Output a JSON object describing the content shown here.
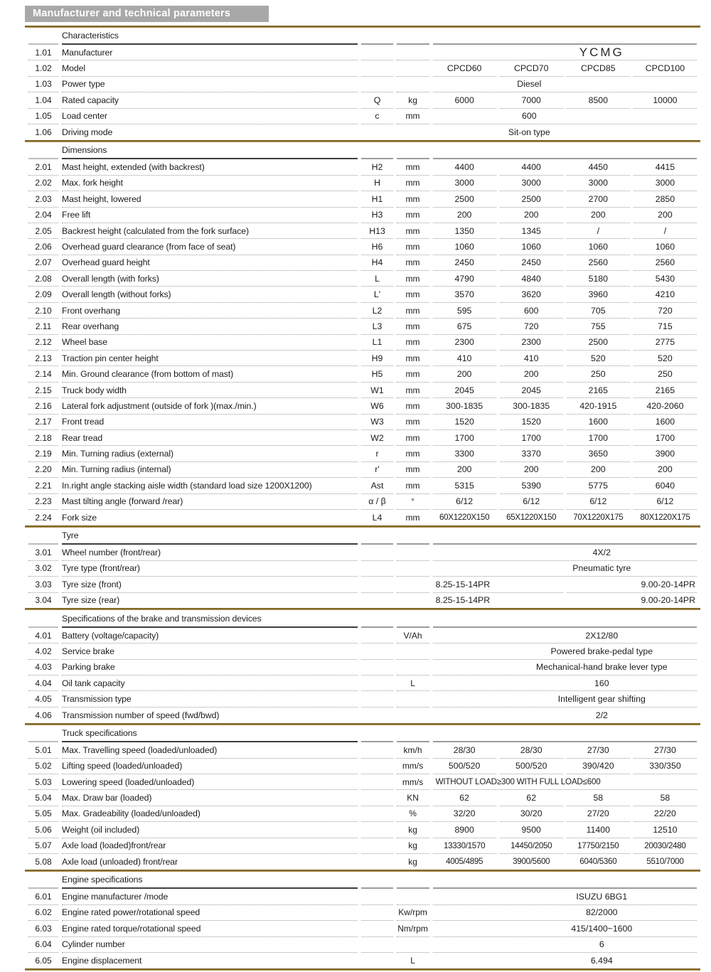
{
  "title": "Manufacturer and technical parameters",
  "colors": {
    "gold_rule": "#8a6f33",
    "title_bg": "#a8a8a8",
    "dotted_line": "#9b9b9b",
    "header_line_dark": "#3e3e3e",
    "header_line_gray": "#9c9c9c"
  },
  "sections": [
    {
      "heading": "Characteristics",
      "rows": [
        {
          "num": "1.01",
          "name": "Manufacturer",
          "symbol": "",
          "unit": "",
          "cells": [
            {
              "t": "YCMG",
              "span": 4,
              "shift": "right",
              "brand": true
            }
          ]
        },
        {
          "num": "1.02",
          "name": "Model",
          "symbol": "",
          "unit": "",
          "cells": [
            {
              "t": "CPCD60"
            },
            {
              "t": "CPCD70"
            },
            {
              "t": "CPCD85"
            },
            {
              "t": "CPCD100"
            }
          ]
        },
        {
          "num": "1.03",
          "name": "Power type",
          "symbol": "",
          "unit": "",
          "cells": [
            {
              "t": "Diesel",
              "span": 4,
              "shift": "left"
            }
          ]
        },
        {
          "num": "1.04",
          "name": "Rated capacity",
          "symbol": "Q",
          "unit": "kg",
          "cells": [
            {
              "t": "6000"
            },
            {
              "t": "7000"
            },
            {
              "t": "8500"
            },
            {
              "t": "10000"
            }
          ]
        },
        {
          "num": "1.05",
          "name": "Load center",
          "symbol": "c",
          "unit": "mm",
          "cells": [
            {
              "t": "600",
              "span": 4,
              "shift": "left"
            }
          ]
        },
        {
          "num": "1.06",
          "name": "Driving mode",
          "symbol": "",
          "unit": "",
          "cells": [
            {
              "t": "Sit-on type",
              "span": 4,
              "shift": "left"
            }
          ]
        }
      ]
    },
    {
      "heading": "Dimensions",
      "rows": [
        {
          "num": "2.01",
          "name": "Mast height, extended (with backrest)",
          "symbol": "H2",
          "unit": "mm",
          "cells": [
            {
              "t": "4400"
            },
            {
              "t": "4400"
            },
            {
              "t": "4450"
            },
            {
              "t": "4415"
            }
          ]
        },
        {
          "num": "2.02",
          "name": "Max. fork height",
          "symbol": "H",
          "unit": "mm",
          "cells": [
            {
              "t": "3000"
            },
            {
              "t": "3000"
            },
            {
              "t": "3000"
            },
            {
              "t": "3000"
            }
          ]
        },
        {
          "num": "2.03",
          "name": "Mast height, lowered",
          "symbol": "H1",
          "unit": "mm",
          "cells": [
            {
              "t": "2500"
            },
            {
              "t": "2500"
            },
            {
              "t": "2700"
            },
            {
              "t": "2850"
            }
          ]
        },
        {
          "num": "2.04",
          "name": "Free lift",
          "symbol": "H3",
          "unit": "mm",
          "cells": [
            {
              "t": "200"
            },
            {
              "t": "200"
            },
            {
              "t": "200"
            },
            {
              "t": "200"
            }
          ]
        },
        {
          "num": "2.05",
          "name": "Backrest height  (calculated from the fork surface)",
          "symbol": "H13",
          "unit": "mm",
          "cells": [
            {
              "t": "1350"
            },
            {
              "t": "1345"
            },
            {
              "t": "/"
            },
            {
              "t": "/"
            }
          ]
        },
        {
          "num": "2.06",
          "name": "Overhead guard clearance (from face of seat)",
          "symbol": "H6",
          "unit": "mm",
          "cells": [
            {
              "t": "1060"
            },
            {
              "t": "1060"
            },
            {
              "t": "1060"
            },
            {
              "t": "1060"
            }
          ]
        },
        {
          "num": "2.07",
          "name": "Overhead guard height",
          "symbol": "H4",
          "unit": "mm",
          "cells": [
            {
              "t": "2450"
            },
            {
              "t": "2450"
            },
            {
              "t": "2560"
            },
            {
              "t": "2560"
            }
          ]
        },
        {
          "num": "2.08",
          "name": "Overall length (with forks)",
          "symbol": "L",
          "unit": "mm",
          "cells": [
            {
              "t": "4790"
            },
            {
              "t": "4840"
            },
            {
              "t": "5180"
            },
            {
              "t": "5430"
            }
          ]
        },
        {
          "num": "2.09",
          "name": "Overall length (without forks)",
          "symbol": "L'",
          "unit": "mm",
          "cells": [
            {
              "t": "3570"
            },
            {
              "t": "3620"
            },
            {
              "t": "3960"
            },
            {
              "t": "4210"
            }
          ]
        },
        {
          "num": "2.10",
          "name": "Front overhang",
          "symbol": "L2",
          "unit": "mm",
          "cells": [
            {
              "t": "595"
            },
            {
              "t": "600"
            },
            {
              "t": "705"
            },
            {
              "t": "720"
            }
          ]
        },
        {
          "num": "2.11",
          "name": "Rear overhang",
          "symbol": "L3",
          "unit": "mm",
          "cells": [
            {
              "t": "675"
            },
            {
              "t": "720"
            },
            {
              "t": "755"
            },
            {
              "t": "715"
            }
          ]
        },
        {
          "num": "2.12",
          "name": "Wheel base",
          "symbol": "L1",
          "unit": "mm",
          "cells": [
            {
              "t": "2300"
            },
            {
              "t": "2300"
            },
            {
              "t": "2500"
            },
            {
              "t": "2775"
            }
          ]
        },
        {
          "num": "2.13",
          "name": "Traction pin center height",
          "symbol": "H9",
          "unit": "mm",
          "cells": [
            {
              "t": "410"
            },
            {
              "t": "410"
            },
            {
              "t": "520"
            },
            {
              "t": "520"
            }
          ]
        },
        {
          "num": "2.14",
          "name": "Min. Ground clearance (from bottom of mast)",
          "symbol": "H5",
          "unit": "mm",
          "cells": [
            {
              "t": "200"
            },
            {
              "t": "200"
            },
            {
              "t": "250"
            },
            {
              "t": "250"
            }
          ]
        },
        {
          "num": "2.15",
          "name": "Truck body width",
          "symbol": "W1",
          "unit": "mm",
          "cells": [
            {
              "t": "2045"
            },
            {
              "t": "2045"
            },
            {
              "t": "2165"
            },
            {
              "t": "2165"
            }
          ]
        },
        {
          "num": "2.16",
          "name": "Lateral fork adjustment (outside of fork )(max./min.)",
          "symbol": "W6",
          "unit": "mm",
          "cells": [
            {
              "t": "300-1835"
            },
            {
              "t": "300-1835"
            },
            {
              "t": "420-1915"
            },
            {
              "t": "420-2060"
            }
          ]
        },
        {
          "num": "2.17",
          "name": "Front tread",
          "symbol": "W3",
          "unit": "mm",
          "cells": [
            {
              "t": "1520"
            },
            {
              "t": "1520"
            },
            {
              "t": "1600"
            },
            {
              "t": "1600"
            }
          ]
        },
        {
          "num": "2.18",
          "name": "Rear tread",
          "symbol": "W2",
          "unit": "mm",
          "cells": [
            {
              "t": "1700"
            },
            {
              "t": "1700"
            },
            {
              "t": "1700"
            },
            {
              "t": "1700"
            }
          ]
        },
        {
          "num": "2.19",
          "name": "Min. Turning radius (external)",
          "symbol": "r",
          "unit": "mm",
          "cells": [
            {
              "t": "3300"
            },
            {
              "t": "3370"
            },
            {
              "t": "3650"
            },
            {
              "t": "3900"
            }
          ]
        },
        {
          "num": "2.20",
          "name": "Min. Turning radius (internal)",
          "symbol": "r'",
          "unit": "mm",
          "cells": [
            {
              "t": "200"
            },
            {
              "t": "200"
            },
            {
              "t": "200"
            },
            {
              "t": "200"
            }
          ]
        },
        {
          "num": "2.21",
          "name": "In.right angle stacking aisle width (standard load size 1200X1200)",
          "symbol": "Ast",
          "unit": "mm",
          "cells": [
            {
              "t": "5315"
            },
            {
              "t": "5390"
            },
            {
              "t": "5775"
            },
            {
              "t": "6040"
            }
          ]
        },
        {
          "num": "2.23",
          "name": "Mast tilting angle (forward /rear)",
          "symbol": "α / β",
          "unit": "°",
          "cells": [
            {
              "t": "6/12"
            },
            {
              "t": "6/12"
            },
            {
              "t": "6/12"
            },
            {
              "t": "6/12"
            }
          ]
        },
        {
          "num": "2.24",
          "name": "Fork size",
          "symbol": "L4",
          "unit": "mm",
          "cells": [
            {
              "t": "60X1220X150",
              "tight": true
            },
            {
              "t": "65X1220X150",
              "tight": true
            },
            {
              "t": "70X1220X175",
              "tight": true
            },
            {
              "t": "80X1220X175",
              "tight": true
            }
          ]
        }
      ]
    },
    {
      "heading": "Tyre",
      "rows": [
        {
          "num": "3.01",
          "name": "Wheel number (front/rear)",
          "symbol": "",
          "unit": "",
          "cells": [
            {
              "t": "4X/2",
              "span": 4,
              "shift": "right"
            }
          ]
        },
        {
          "num": "3.02",
          "name": "Tyre type (front/rear)",
          "symbol": "",
          "unit": "",
          "cells": [
            {
              "t": "Pneumatic tyre",
              "span": 4,
              "shift": "right"
            }
          ]
        },
        {
          "num": "3.03",
          "name": "Tyre size (front)",
          "symbol": "",
          "unit": "",
          "cells": [
            {
              "t": "8.25-15-14PR",
              "span": 2,
              "align": "left"
            },
            {
              "t": "9.00-20-14PR",
              "span": 2,
              "align": "right"
            }
          ]
        },
        {
          "num": "3.04",
          "name": "Tyre size (rear)",
          "symbol": "",
          "unit": "",
          "cells": [
            {
              "t": "8.25-15-14PR",
              "span": 2,
              "align": "left"
            },
            {
              "t": "9.00-20-14PR",
              "span": 2,
              "align": "right"
            }
          ]
        }
      ]
    },
    {
      "heading": "Specifications of the brake and transmission  devices",
      "rows": [
        {
          "num": "4.01",
          "name": "Battery (voltage/capacity)",
          "symbol": "",
          "unit": "V/Ah",
          "cells": [
            {
              "t": "2X12/80",
              "span": 4,
              "shift": "right"
            }
          ]
        },
        {
          "num": "4.02",
          "name": "Service brake",
          "symbol": "",
          "unit": "",
          "cells": [
            {
              "t": "Powered brake-pedal type",
              "span": 4,
              "shift": "right"
            }
          ]
        },
        {
          "num": "4.03",
          "name": "Parking brake",
          "symbol": "",
          "unit": "",
          "cells": [
            {
              "t": "Mechanical-hand brake lever type",
              "span": 4,
              "shift": "right"
            }
          ]
        },
        {
          "num": "4.04",
          "name": "Oil tank capacity",
          "symbol": "",
          "unit": "L",
          "cells": [
            {
              "t": "160",
              "span": 4,
              "shift": "right"
            }
          ]
        },
        {
          "num": "4.05",
          "name": "Transmission type",
          "symbol": "",
          "unit": "",
          "cells": [
            {
              "t": "Intelligent gear shifting",
              "span": 4,
              "shift": "right"
            }
          ]
        },
        {
          "num": "4.06",
          "name": "Transmission number of speed (fwd/bwd)",
          "symbol": "",
          "unit": "",
          "cells": [
            {
              "t": "2/2",
              "span": 4,
              "shift": "right"
            }
          ]
        }
      ]
    },
    {
      "heading": "Truck specifications",
      "rows": [
        {
          "num": "5.01",
          "name": "Max. Travelling speed (loaded/unloaded)",
          "symbol": "",
          "unit": "km/h",
          "cells": [
            {
              "t": "28/30"
            },
            {
              "t": "28/30"
            },
            {
              "t": "27/30"
            },
            {
              "t": "27/30"
            }
          ]
        },
        {
          "num": "5.02",
          "name": "Lifting speed (loaded/unloaded)",
          "symbol": "",
          "unit": "mm/s",
          "cells": [
            {
              "t": "500/520"
            },
            {
              "t": "500/520"
            },
            {
              "t": "390/420"
            },
            {
              "t": "330/350"
            }
          ]
        },
        {
          "num": "5.03",
          "name": "Lowering speed (loaded/unloaded)",
          "symbol": "",
          "unit": "mm/s",
          "cells": [
            {
              "t": "WITHOUT LOAD≥300  WITH FULL LOAD≤600",
              "span": 4,
              "align": "left",
              "caps": true
            }
          ]
        },
        {
          "num": "5.04",
          "name": "Max. Draw bar (loaded)",
          "symbol": "",
          "unit": "KN",
          "cells": [
            {
              "t": "62"
            },
            {
              "t": "62"
            },
            {
              "t": "58"
            },
            {
              "t": "58"
            }
          ]
        },
        {
          "num": "5.05",
          "name": "Max. Gradeability (loaded/unloaded)",
          "symbol": "",
          "unit": "%",
          "cells": [
            {
              "t": "32/20"
            },
            {
              "t": "30/20"
            },
            {
              "t": "27/20"
            },
            {
              "t": "22/20"
            }
          ]
        },
        {
          "num": "5.06",
          "name": "Weight (oil included)",
          "symbol": "",
          "unit": "kg",
          "cells": [
            {
              "t": "8900"
            },
            {
              "t": "9500"
            },
            {
              "t": "11400"
            },
            {
              "t": "12510"
            }
          ]
        },
        {
          "num": "5.07",
          "name": "Axle load (loaded)front/rear",
          "symbol": "",
          "unit": "kg",
          "cells": [
            {
              "t": "13330/1570",
              "tight": true
            },
            {
              "t": "14450/2050",
              "tight": true
            },
            {
              "t": "17750/2150",
              "tight": true
            },
            {
              "t": "20030/2480",
              "tight": true
            }
          ]
        },
        {
          "num": "5.08",
          "name": "Axle load (unloaded) front/rear",
          "symbol": "",
          "unit": "kg",
          "cells": [
            {
              "t": "4005/4895",
              "tight": true
            },
            {
              "t": "3900/5600",
              "tight": true
            },
            {
              "t": "6040/5360",
              "tight": true
            },
            {
              "t": "5510/7000",
              "tight": true
            }
          ]
        }
      ]
    },
    {
      "heading": "Engine specifications",
      "rows": [
        {
          "num": "6.01",
          "name": "Engine manufacturer /mode",
          "symbol": "",
          "unit": "",
          "cells": [
            {
              "t": "ISUZU 6BG1",
              "span": 4,
              "shift": "right"
            }
          ]
        },
        {
          "num": "6.02",
          "name": "Engine rated power/rotational speed",
          "symbol": "",
          "unit": "Kw/rpm",
          "cells": [
            {
              "t": "82/2000",
              "span": 4,
              "shift": "right"
            }
          ]
        },
        {
          "num": "6.03",
          "name": "Engine rated torque/rotational speed",
          "symbol": "",
          "unit": "Nm/rpm",
          "cells": [
            {
              "t": "415/1400~1600",
              "span": 4,
              "shift": "right"
            }
          ]
        },
        {
          "num": "6.04",
          "name": "Cylinder number",
          "symbol": "",
          "unit": "",
          "cells": [
            {
              "t": "6",
              "span": 4,
              "shift": "right"
            }
          ]
        },
        {
          "num": "6.05",
          "name": "Engine displacement",
          "symbol": "",
          "unit": "L",
          "cells": [
            {
              "t": "6.494",
              "span": 4,
              "shift": "right"
            }
          ]
        }
      ]
    }
  ]
}
